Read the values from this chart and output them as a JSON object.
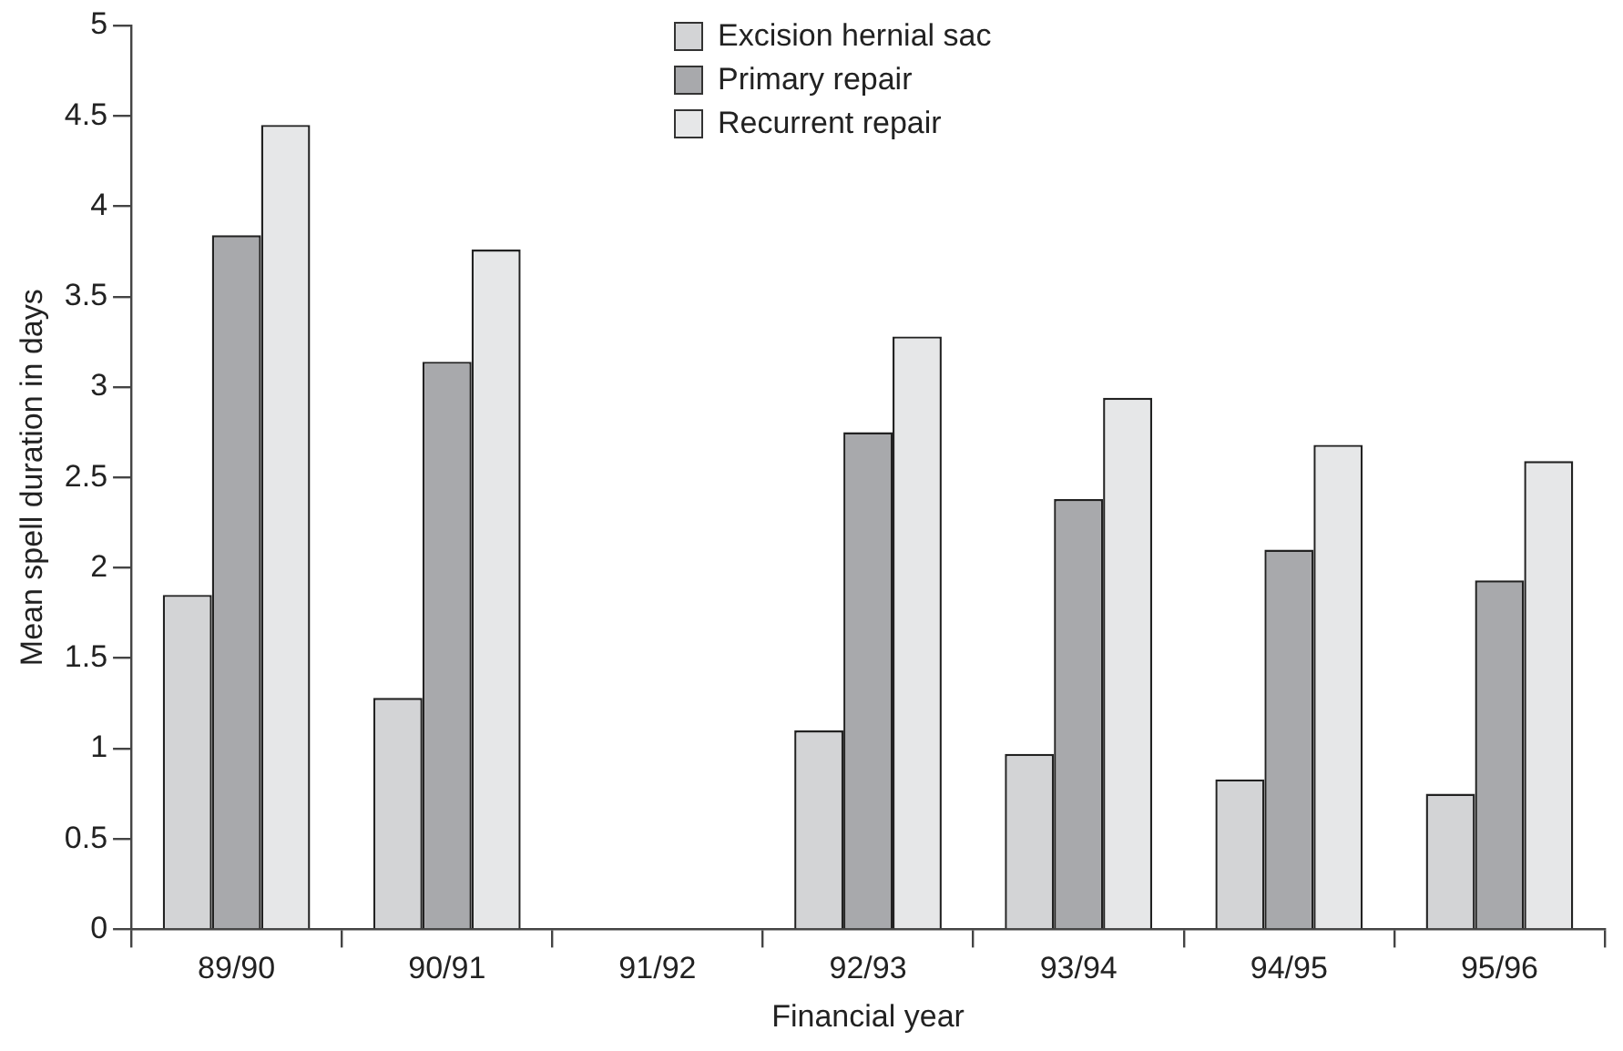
{
  "chart_data": {
    "type": "bar",
    "xlabel": "Financial year",
    "ylabel": "Mean spell duration in days",
    "categories": [
      "89/90",
      "90/91",
      "91/92",
      "92/93",
      "93/94",
      "94/95",
      "95/96"
    ],
    "series": [
      {
        "name": "Excision hernial sac",
        "color": "#d3d4d6",
        "values": [
          1.85,
          1.28,
          null,
          1.1,
          0.97,
          0.83,
          0.75
        ]
      },
      {
        "name": "Primary repair",
        "color": "#a8a9ac",
        "values": [
          3.84,
          3.14,
          null,
          2.75,
          2.38,
          2.1,
          1.93
        ]
      },
      {
        "name": "Recurrent repair",
        "color": "#e6e7e8",
        "values": [
          4.45,
          3.76,
          null,
          3.28,
          2.94,
          2.68,
          2.59
        ]
      }
    ],
    "ylim": [
      0,
      5
    ],
    "yticks": [
      0,
      0.5,
      1,
      1.5,
      2,
      2.5,
      3,
      3.5,
      4,
      4.5,
      5
    ],
    "grid": false,
    "legend": "top"
  }
}
